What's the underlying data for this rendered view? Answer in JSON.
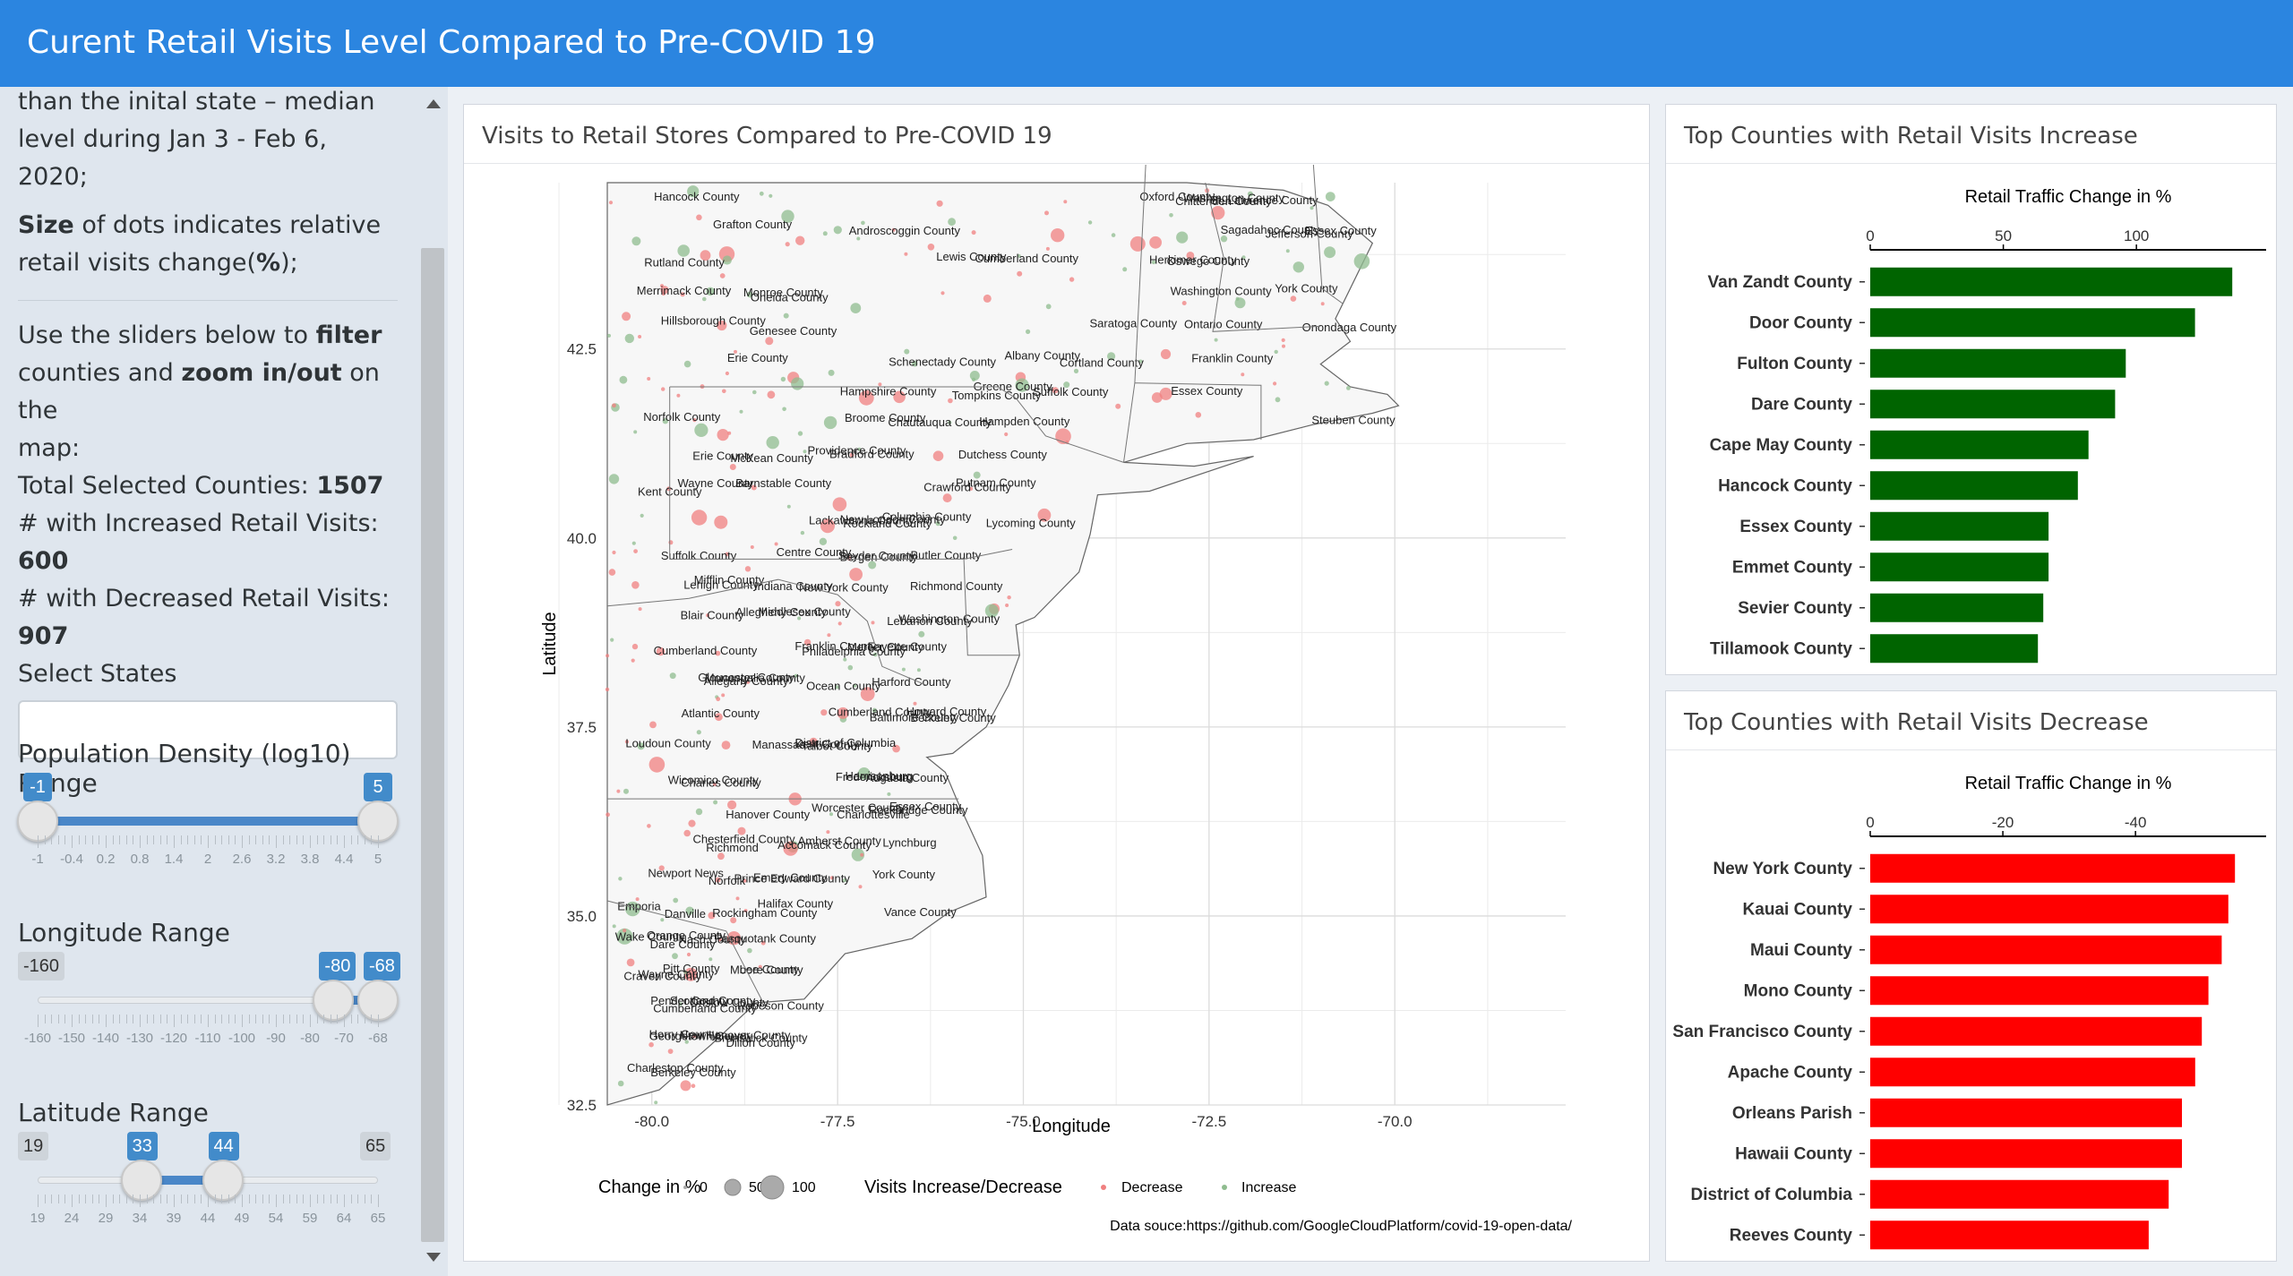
{
  "header": {
    "title": "Curent Retail Visits Level Compared to Pre-COVID 19"
  },
  "sidebar": {
    "intro_line1": "than the inital state – median",
    "intro_line2": "level during Jan 3 - Feb 6, 2020;",
    "size_bold": "Size",
    "size_rest": " of dots indicates relative",
    "size_line2_pre": "retail visits change(",
    "size_line2_bold": "%",
    "size_line2_post": ");",
    "use_pre": "Use the sliders below to ",
    "use_bold1": "filter",
    "use_mid": " counties and ",
    "use_bold2": "zoom in/out",
    "use_post": " on the",
    "use_line3": "map:",
    "total_label": "Total Selected Counties: ",
    "total_value": "1507",
    "inc_label": "# with Increased Retail Visits: ",
    "inc_value": "600",
    "dec_label": "# with Decreased Retail Visits: ",
    "dec_value": "907",
    "select_states_label": "Select States",
    "select_states_value": ""
  },
  "sliders": {
    "popdensity": {
      "title": "Population Density (log10) Range",
      "min_label": "-1",
      "from": "-1",
      "to": "5",
      "ticks": [
        "-1",
        "-0.4",
        "0.2",
        "0.8",
        "1.4",
        "2",
        "2.6",
        "3.2",
        "3.8",
        "4.4",
        "5"
      ],
      "range_min": -1,
      "range_max": 5,
      "sel_from": -1,
      "sel_to": 5
    },
    "longitude": {
      "title": "Longitude Range",
      "min_label": "-160",
      "from": "-80",
      "to": "-68",
      "ticks": [
        "-160",
        "-150",
        "-140",
        "-130",
        "-120",
        "-110",
        "-100",
        "-90",
        "-80",
        "-70",
        "-68"
      ],
      "range_min": -160,
      "range_max": -68,
      "sel_from": -80,
      "sel_to": -68
    },
    "latitude": {
      "title": "Latitude Range",
      "min_label": "19",
      "max_label": "65",
      "from": "33",
      "to": "44",
      "ticks": [
        "19",
        "24",
        "29",
        "34",
        "39",
        "44",
        "49",
        "54",
        "59",
        "64",
        "65"
      ],
      "range_min": 19,
      "range_max": 65,
      "sel_from": 33,
      "sel_to": 44
    }
  },
  "map_panel": {
    "title": "Visits to Retail Stores Compared to Pre-COVID 19",
    "xlabel": "Longitude",
    "ylabel": "Latitude",
    "x_ticks": [
      "-80.0",
      "-77.5",
      "-75.0",
      "-72.5",
      "-70.0"
    ],
    "y_ticks": [
      "42.5",
      "40.0",
      "37.5",
      "35.0",
      "32.5"
    ],
    "legend_size_title": "Change in %",
    "legend_size_values": [
      "0",
      "50",
      "100"
    ],
    "legend_color_title": "Visits Increase/Decrease",
    "legend_decrease": "Decrease",
    "legend_increase": "Increase",
    "source": "Data souce:https://github.com/GoogleCloudPlatform/covid-19-open-data/",
    "colors": {
      "decrease": "#f08080",
      "increase": "#8fbc8f"
    }
  },
  "map_labels": [
    "St. Lawrence County",
    "Chittenden County",
    "Oxford County",
    "Hancock County",
    "Washington County",
    "Androscoggin County",
    "Essex County",
    "Jefferson County",
    "Grafton County",
    "Sagadahoc County",
    "Lewis County",
    "Cumberland County",
    "Rutland County",
    "Oswego County",
    "Herkimer County",
    "York County",
    "Monroe County",
    "Oneida County",
    "Washington County",
    "Merrimack County",
    "Genesee County",
    "Onondaga County",
    "Saratoga County",
    "Hillsborough County",
    "Ontario County",
    "Schenectady County",
    "Erie County",
    "Cortland County",
    "Albany County",
    "Franklin County",
    "Essex County",
    "Tompkins County",
    "Hampshire County",
    "Suffolk County",
    "Greene County",
    "Norfolk County",
    "Chautauqua County",
    "Steuben County",
    "Broome County",
    "Hampden County",
    "Erie County",
    "Providence County",
    "McKean County",
    "Bradford County",
    "Dutchess County",
    "Kent County",
    "Barnstable County",
    "Crawford County",
    "Wayne County",
    "Putnam County",
    "New London County",
    "Lycoming County",
    "Lackawanna County",
    "Rockland County",
    "Columbia County",
    "Bergen County",
    "Suffolk County",
    "Butler County",
    "Centre County",
    "Snyder County",
    "New York County",
    "Indiana County",
    "Mifflin County",
    "Lehigh County",
    "Richmond County",
    "Allegheny County",
    "Blair County",
    "Lebanon County",
    "Middlesex County",
    "Washington County",
    "Cumberland County",
    "Mercer County",
    "Philadelphia County",
    "Fayette County",
    "Franklin County",
    "Ocean County",
    "Gloucester County",
    "Monongalia County",
    "Allegany County",
    "Harford County",
    "Atlantic County",
    "Berkeley County",
    "Baltimore County",
    "Cumberland County",
    "Howard County",
    "Kent County",
    "Loudoun County",
    "District of Columbia",
    "Manassas",
    "Talbot County",
    "Charles County",
    "Harrisonburg",
    "Fredericksburg",
    "Wicomico County",
    "Augusta County",
    "Worcester County",
    "Charlottesville",
    "Essex County",
    "Rockbridge County",
    "Hanover County",
    "Accomack County",
    "Amherst County",
    "Richmond",
    "Lynchburg",
    "Chesterfield County",
    "York County",
    "Prince Edward County",
    "Newport News",
    "Emery County",
    "Norfolk",
    "Halifax County",
    "Danville",
    "Emporia",
    "Rockingham County",
    "Vance County",
    "Pasquotank County",
    "Orange County",
    "Nash County",
    "Wake County",
    "Dare County",
    "Pitt County",
    "Lee County",
    "Wayne County",
    "Moore County",
    "Craven County",
    "Cumberland County",
    "Scotland County",
    "Onslow County",
    "Robeson County",
    "Pender County",
    "Dillon County",
    "New Hanover County",
    "Brunswick County",
    "Horry County",
    "Georgetown County",
    "Berkeley County",
    "Charleston County"
  ],
  "top_increase": {
    "title": "Top Counties with Retail Visits Increase",
    "axis_title": "Retail Traffic Change in %",
    "ticks": [
      "0",
      "50",
      "100"
    ],
    "color": "#006400",
    "chart_data": {
      "type": "bar",
      "categories": [
        "Van Zandt County",
        "Door County",
        "Fulton County",
        "Dare County",
        "Cape May County",
        "Hancock County",
        "Essex County",
        "Emmet County",
        "Sevier County",
        "Tillamook County"
      ],
      "values": [
        136,
        122,
        96,
        92,
        82,
        78,
        67,
        67,
        65,
        63
      ],
      "xlim": [
        0,
        142
      ]
    }
  },
  "top_decrease": {
    "title": "Top Counties with Retail Visits Decrease",
    "axis_title": "Retail Traffic Change in %",
    "ticks": [
      "0",
      "-20",
      "-40"
    ],
    "color": "#ff0000",
    "chart_data": {
      "type": "bar",
      "categories": [
        "New York County",
        "Kauai County",
        "Maui County",
        "Mono County",
        "San Francisco County",
        "Apache County",
        "Orleans Parish",
        "Hawaii County",
        "District of Columbia",
        "Reeves County"
      ],
      "values": [
        -55,
        -54,
        -53,
        -51,
        -50,
        -49,
        -47,
        -47,
        -45,
        -42
      ],
      "xlim": [
        0,
        -57
      ]
    }
  }
}
